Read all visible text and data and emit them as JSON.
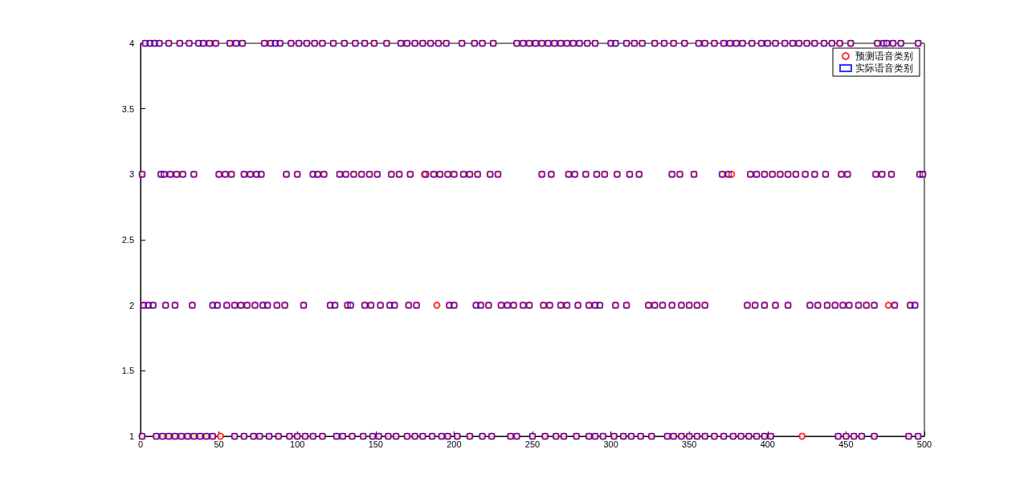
{
  "chart_data": {
    "type": "scatter",
    "xlim": [
      0,
      500
    ],
    "xticks": [
      0,
      50,
      100,
      150,
      200,
      250,
      300,
      350,
      400,
      450,
      500
    ],
    "ylim": [
      1,
      4
    ],
    "yticks": [
      1,
      1.5,
      2,
      2.5,
      3,
      3.5,
      4
    ],
    "grid": false,
    "legend": "top right",
    "series": [
      {
        "name": "预测语音类别",
        "color": "#ff0000",
        "marker": "circle",
        "x": [
          3,
          6,
          9,
          12,
          18,
          25,
          31,
          37,
          40,
          44,
          48,
          57,
          61,
          65,
          79,
          83,
          86,
          89,
          96,
          101,
          106,
          111,
          116,
          123,
          130,
          137,
          143,
          149,
          157,
          166,
          170,
          175,
          180,
          185,
          190,
          195,
          205,
          213,
          218,
          225,
          240,
          244,
          248,
          252,
          256,
          260,
          264,
          268,
          272,
          276,
          280,
          285,
          290,
          300,
          303,
          310,
          315,
          320,
          328,
          334,
          340,
          347,
          356,
          360,
          366,
          372,
          376,
          380,
          384,
          390,
          396,
          400,
          405,
          411,
          416,
          420,
          425,
          430,
          436,
          441,
          446,
          453,
          470,
          474,
          476,
          480,
          485,
          496,
          1,
          13,
          15,
          19,
          23,
          27,
          34,
          50,
          54,
          58,
          66,
          70,
          74,
          77,
          93,
          100,
          110,
          113,
          117,
          127,
          131,
          136,
          141,
          146,
          151,
          160,
          165,
          172,
          182,
          187,
          191,
          196,
          200,
          206,
          210,
          215,
          223,
          228,
          256,
          262,
          273,
          277,
          284,
          291,
          296,
          304,
          312,
          318,
          339,
          344,
          353,
          371,
          375,
          389,
          393,
          398,
          403,
          408,
          413,
          418,
          424,
          430,
          437,
          447,
          451,
          469,
          473,
          479,
          497,
          499,
          2,
          5,
          8,
          16,
          22,
          33,
          46,
          49,
          55,
          60,
          64,
          68,
          73,
          78,
          81,
          87,
          92,
          104,
          121,
          124,
          132,
          134,
          143,
          147,
          153,
          159,
          162,
          171,
          176,
          197,
          200,
          214,
          217,
          222,
          230,
          234,
          238,
          244,
          248,
          257,
          261,
          268,
          272,
          279,
          286,
          290,
          293,
          303,
          310,
          324,
          328,
          333,
          339,
          345,
          350,
          355,
          360,
          387,
          392,
          398,
          405,
          413,
          427,
          432,
          438,
          443,
          448,
          452,
          458,
          463,
          468,
          481,
          491,
          494,
          1,
          10,
          14,
          18,
          22,
          26,
          30,
          34,
          38,
          42,
          46,
          60,
          66,
          72,
          76,
          82,
          88,
          95,
          100,
          105,
          110,
          116,
          125,
          129,
          135,
          142,
          148,
          152,
          158,
          163,
          170,
          175,
          180,
          186,
          192,
          196,
          202,
          210,
          218,
          224,
          236,
          240,
          250,
          258,
          265,
          270,
          278,
          286,
          290,
          295,
          302,
          308,
          313,
          319,
          326,
          336,
          340,
          345,
          350,
          355,
          360,
          366,
          372,
          378,
          383,
          388,
          393,
          398,
          402,
          445,
          450,
          455,
          460,
          468,
          490,
          496,
          181,
          377,
          189,
          477,
          51,
          422
        ],
        "values": [
          4,
          4,
          4,
          4,
          4,
          4,
          4,
          4,
          4,
          4,
          4,
          4,
          4,
          4,
          4,
          4,
          4,
          4,
          4,
          4,
          4,
          4,
          4,
          4,
          4,
          4,
          4,
          4,
          4,
          4,
          4,
          4,
          4,
          4,
          4,
          4,
          4,
          4,
          4,
          4,
          4,
          4,
          4,
          4,
          4,
          4,
          4,
          4,
          4,
          4,
          4,
          4,
          4,
          4,
          4,
          4,
          4,
          4,
          4,
          4,
          4,
          4,
          4,
          4,
          4,
          4,
          4,
          4,
          4,
          4,
          4,
          4,
          4,
          4,
          4,
          4,
          4,
          4,
          4,
          4,
          4,
          4,
          4,
          4,
          4,
          4,
          4,
          4,
          3,
          3,
          3,
          3,
          3,
          3,
          3,
          3,
          3,
          3,
          3,
          3,
          3,
          3,
          3,
          3,
          3,
          3,
          3,
          3,
          3,
          3,
          3,
          3,
          3,
          3,
          3,
          3,
          3,
          3,
          3,
          3,
          3,
          3,
          3,
          3,
          3,
          3,
          3,
          3,
          3,
          3,
          3,
          3,
          3,
          3,
          3,
          3,
          3,
          3,
          3,
          3,
          3,
          3,
          3,
          3,
          3,
          3,
          3,
          3,
          3,
          3,
          3,
          3,
          3,
          3,
          3,
          3,
          3,
          3,
          2,
          2,
          2,
          2,
          2,
          2,
          2,
          2,
          2,
          2,
          2,
          2,
          2,
          2,
          2,
          2,
          2,
          2,
          2,
          2,
          2,
          2,
          2,
          2,
          2,
          2,
          2,
          2,
          2,
          2,
          2,
          2,
          2,
          2,
          2,
          2,
          2,
          2,
          2,
          2,
          2,
          2,
          2,
          2,
          2,
          2,
          2,
          2,
          2,
          2,
          2,
          2,
          2,
          2,
          2,
          2,
          2,
          2,
          2,
          2,
          2,
          2,
          2,
          2,
          2,
          2,
          2,
          2,
          2,
          2,
          2,
          2,
          2,
          2,
          1,
          1,
          1,
          1,
          1,
          1,
          1,
          1,
          1,
          1,
          1,
          1,
          1,
          1,
          1,
          1,
          1,
          1,
          1,
          1,
          1,
          1,
          1,
          1,
          1,
          1,
          1,
          1,
          1,
          1,
          1,
          1,
          1,
          1,
          1,
          1,
          1,
          1,
          1,
          1,
          1,
          1,
          1,
          1,
          1,
          1,
          1,
          1,
          1,
          1,
          1,
          1,
          1,
          1,
          1,
          1,
          1,
          1,
          1,
          1,
          1,
          1,
          1,
          1,
          1,
          1,
          1,
          1,
          1,
          1,
          1,
          1,
          1,
          1,
          1,
          1,
          3,
          3,
          2,
          2,
          1,
          1
        ]
      },
      {
        "name": "实际语音类别",
        "color": "#0000ff",
        "marker": "square",
        "x": [
          3,
          6,
          9,
          12,
          18,
          25,
          31,
          37,
          40,
          44,
          48,
          57,
          61,
          65,
          79,
          83,
          86,
          89,
          96,
          101,
          106,
          111,
          116,
          123,
          130,
          137,
          143,
          149,
          157,
          166,
          170,
          175,
          180,
          185,
          190,
          195,
          205,
          213,
          218,
          225,
          240,
          244,
          248,
          252,
          256,
          260,
          264,
          268,
          272,
          276,
          280,
          285,
          290,
          300,
          303,
          310,
          315,
          320,
          328,
          334,
          340,
          347,
          356,
          360,
          366,
          372,
          376,
          380,
          384,
          390,
          396,
          400,
          405,
          411,
          416,
          420,
          425,
          430,
          436,
          441,
          446,
          453,
          470,
          474,
          476,
          480,
          485,
          496,
          1,
          13,
          15,
          19,
          23,
          27,
          34,
          50,
          54,
          58,
          66,
          70,
          74,
          77,
          93,
          100,
          110,
          113,
          117,
          127,
          131,
          136,
          141,
          146,
          151,
          160,
          165,
          172,
          182,
          187,
          191,
          196,
          200,
          206,
          210,
          215,
          223,
          228,
          256,
          262,
          273,
          277,
          284,
          291,
          296,
          304,
          312,
          318,
          339,
          344,
          353,
          371,
          375,
          389,
          393,
          398,
          403,
          408,
          413,
          418,
          424,
          430,
          437,
          447,
          451,
          469,
          473,
          479,
          497,
          499,
          2,
          5,
          8,
          16,
          22,
          33,
          46,
          49,
          55,
          60,
          64,
          68,
          73,
          78,
          81,
          87,
          92,
          104,
          121,
          124,
          132,
          134,
          143,
          147,
          153,
          159,
          162,
          171,
          176,
          197,
          200,
          214,
          217,
          222,
          230,
          234,
          238,
          244,
          248,
          257,
          261,
          268,
          272,
          279,
          286,
          290,
          293,
          303,
          310,
          324,
          328,
          333,
          339,
          345,
          350,
          355,
          360,
          387,
          392,
          398,
          405,
          413,
          427,
          432,
          438,
          443,
          448,
          452,
          458,
          463,
          468,
          481,
          491,
          494,
          1,
          10,
          14,
          18,
          22,
          26,
          30,
          34,
          38,
          42,
          46,
          60,
          66,
          72,
          76,
          82,
          88,
          95,
          100,
          105,
          110,
          116,
          125,
          129,
          135,
          142,
          148,
          152,
          158,
          163,
          170,
          175,
          180,
          186,
          192,
          196,
          202,
          210,
          218,
          224,
          236,
          240,
          250,
          258,
          265,
          270,
          278,
          286,
          290,
          295,
          302,
          308,
          313,
          319,
          326,
          336,
          340,
          345,
          350,
          355,
          360,
          366,
          372,
          378,
          383,
          388,
          393,
          398,
          402,
          445,
          450,
          455,
          460,
          468,
          490,
          496
        ],
        "values": [
          4,
          4,
          4,
          4,
          4,
          4,
          4,
          4,
          4,
          4,
          4,
          4,
          4,
          4,
          4,
          4,
          4,
          4,
          4,
          4,
          4,
          4,
          4,
          4,
          4,
          4,
          4,
          4,
          4,
          4,
          4,
          4,
          4,
          4,
          4,
          4,
          4,
          4,
          4,
          4,
          4,
          4,
          4,
          4,
          4,
          4,
          4,
          4,
          4,
          4,
          4,
          4,
          4,
          4,
          4,
          4,
          4,
          4,
          4,
          4,
          4,
          4,
          4,
          4,
          4,
          4,
          4,
          4,
          4,
          4,
          4,
          4,
          4,
          4,
          4,
          4,
          4,
          4,
          4,
          4,
          4,
          4,
          4,
          4,
          4,
          4,
          4,
          4,
          3,
          3,
          3,
          3,
          3,
          3,
          3,
          3,
          3,
          3,
          3,
          3,
          3,
          3,
          3,
          3,
          3,
          3,
          3,
          3,
          3,
          3,
          3,
          3,
          3,
          3,
          3,
          3,
          3,
          3,
          3,
          3,
          3,
          3,
          3,
          3,
          3,
          3,
          3,
          3,
          3,
          3,
          3,
          3,
          3,
          3,
          3,
          3,
          3,
          3,
          3,
          3,
          3,
          3,
          3,
          3,
          3,
          3,
          3,
          3,
          3,
          3,
          3,
          3,
          3,
          3,
          3,
          3,
          3,
          3,
          2,
          2,
          2,
          2,
          2,
          2,
          2,
          2,
          2,
          2,
          2,
          2,
          2,
          2,
          2,
          2,
          2,
          2,
          2,
          2,
          2,
          2,
          2,
          2,
          2,
          2,
          2,
          2,
          2,
          2,
          2,
          2,
          2,
          2,
          2,
          2,
          2,
          2,
          2,
          2,
          2,
          2,
          2,
          2,
          2,
          2,
          2,
          2,
          2,
          2,
          2,
          2,
          2,
          2,
          2,
          2,
          2,
          2,
          2,
          2,
          2,
          2,
          2,
          2,
          2,
          2,
          2,
          2,
          2,
          2,
          2,
          2,
          2,
          2,
          1,
          1,
          1,
          1,
          1,
          1,
          1,
          1,
          1,
          1,
          1,
          1,
          1,
          1,
          1,
          1,
          1,
          1,
          1,
          1,
          1,
          1,
          1,
          1,
          1,
          1,
          1,
          1,
          1,
          1,
          1,
          1,
          1,
          1,
          1,
          1,
          1,
          1,
          1,
          1,
          1,
          1,
          1,
          1,
          1,
          1,
          1,
          1,
          1,
          1,
          1,
          1,
          1,
          1,
          1,
          1,
          1,
          1,
          1,
          1,
          1,
          1,
          1,
          1,
          1,
          1,
          1,
          1,
          1,
          1,
          1,
          1,
          1,
          1,
          1,
          1
        ]
      }
    ]
  }
}
